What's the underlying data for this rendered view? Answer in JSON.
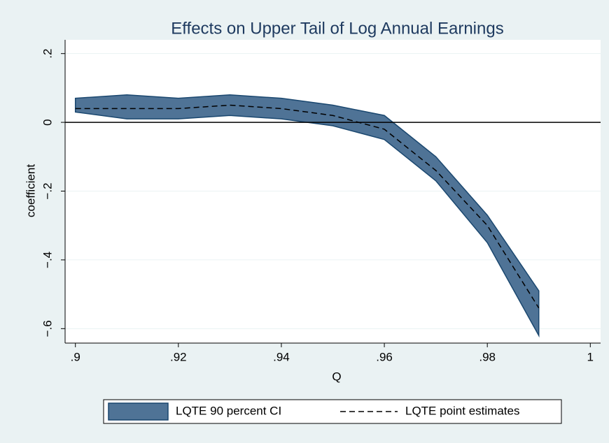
{
  "chart_data": {
    "type": "band-line",
    "title": "Effects on Upper Tail of Log Annual Earnings",
    "x_label": "Q",
    "y_label": "coefficient",
    "x": [
      0.9,
      0.91,
      0.92,
      0.93,
      0.94,
      0.95,
      0.96,
      0.97,
      0.98,
      0.99
    ],
    "series": [
      {
        "name": "LQTE 90 percent CI",
        "color": "#4f7396",
        "stroke": "#1a476f",
        "upper": [
          0.07,
          0.08,
          0.07,
          0.08,
          0.07,
          0.05,
          0.02,
          -0.1,
          -0.27,
          -0.49
        ],
        "lower": [
          0.03,
          0.01,
          0.01,
          0.02,
          0.01,
          -0.01,
          -0.05,
          -0.17,
          -0.35,
          -0.62
        ]
      },
      {
        "name": "LQTE point estimates",
        "color": "#000000",
        "dashed": true,
        "values": [
          0.04,
          0.04,
          0.04,
          0.05,
          0.04,
          0.02,
          -0.02,
          -0.14,
          -0.3,
          -0.54
        ]
      }
    ],
    "reference_line": 0,
    "xlim": [
      0.898,
      1.002
    ],
    "ylim": [
      -0.642,
      0.24
    ],
    "xticks": [
      {
        "value": 0.9,
        "label": ".9"
      },
      {
        "value": 0.92,
        "label": ".92"
      },
      {
        "value": 0.94,
        "label": ".94"
      },
      {
        "value": 0.96,
        "label": ".96"
      },
      {
        "value": 0.98,
        "label": ".98"
      },
      1
    ],
    "yticks": [
      {
        "value": -0.6,
        "label": "−.6"
      },
      {
        "value": -0.4,
        "label": "−.4"
      },
      {
        "value": -0.2,
        "label": "−.2"
      },
      0,
      {
        "value": 0.2,
        "label": ".2"
      }
    ],
    "grid": true,
    "legend": "bottom"
  }
}
